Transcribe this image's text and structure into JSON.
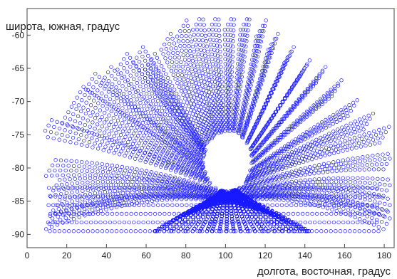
{
  "chart_data": {
    "type": "scatter",
    "title": "",
    "xlabel": "долгота, восточная, градус",
    "ylabel": "широта, южная, градус",
    "xlim": [
      0,
      185
    ],
    "ylim": [
      -92,
      -56
    ],
    "x_ticks": [
      0,
      20,
      40,
      60,
      80,
      100,
      120,
      140,
      160,
      180
    ],
    "y_ticks": [
      -60,
      -65,
      -70,
      -75,
      -80,
      -85,
      -90
    ],
    "x_tick_labels": [
      "0",
      "20",
      "40",
      "60",
      "80",
      "100",
      "120",
      "140",
      "160",
      "180"
    ],
    "y_tick_labels": [
      "-60",
      "-65",
      "-70",
      "-75",
      "-80",
      "-85",
      "-90"
    ],
    "grid": false,
    "legend": "none",
    "marker": "open-circle",
    "series_color": "#1a1aff",
    "pattern": {
      "description_in_data_units": "orbital ground tracks converging around a central hole",
      "hole_center": [
        101,
        -79
      ],
      "hole_radius_x": 12,
      "hole_radius_y": 4.5,
      "tracks": [
        {
          "start": [
            10,
            -74
          ],
          "peak_lat": -76
        },
        {
          "start": [
            12,
            -80
          ],
          "peak_lat": -81
        },
        {
          "start": [
            14,
            -83
          ],
          "peak_lat": -84
        },
        {
          "start": [
            14,
            -86
          ],
          "peak_lat": -86.5
        },
        {
          "start": [
            12,
            -88
          ],
          "peak_lat": -88
        },
        {
          "start": [
            20,
            -72
          ],
          "peak_lat": -72
        },
        {
          "start": [
            26,
            -69
          ],
          "peak_lat": -69
        },
        {
          "start": [
            32,
            -67
          ],
          "peak_lat": -67
        },
        {
          "start": [
            40,
            -66
          ],
          "peak_lat": -66
        },
        {
          "start": [
            48,
            -64
          ],
          "peak_lat": -64
        },
        {
          "start": [
            56,
            -63
          ],
          "peak_lat": -63
        },
        {
          "start": [
            62,
            -64
          ],
          "peak_lat": -64
        },
        {
          "start": [
            70,
            -61
          ],
          "peak_lat": -61
        },
        {
          "start": [
            78,
            -59
          ],
          "peak_lat": -59
        },
        {
          "start": [
            86,
            -58
          ],
          "peak_lat": -58
        },
        {
          "start": [
            94,
            -58
          ],
          "peak_lat": -58
        },
        {
          "start": [
            102,
            -58
          ],
          "peak_lat": -58
        },
        {
          "start": [
            110,
            -58
          ],
          "peak_lat": -58
        },
        {
          "start": [
            118,
            -59
          ],
          "peak_lat": -59
        },
        {
          "start": [
            124,
            -61
          ],
          "peak_lat": -61
        },
        {
          "start": [
            132,
            -63
          ],
          "peak_lat": -63
        },
        {
          "start": [
            140,
            -65
          ],
          "peak_lat": -65
        },
        {
          "start": [
            148,
            -66
          ],
          "peak_lat": -66
        },
        {
          "start": [
            156,
            -68
          ],
          "peak_lat": -68
        },
        {
          "start": [
            164,
            -71
          ],
          "peak_lat": -71
        },
        {
          "start": [
            172,
            -73
          ],
          "peak_lat": -73
        },
        {
          "start": [
            180,
            -75
          ],
          "peak_lat": -75
        },
        {
          "start": [
            182,
            -79
          ],
          "peak_lat": -79
        },
        {
          "start": [
            182,
            -83
          ],
          "peak_lat": -83
        },
        {
          "start": [
            182,
            -86
          ],
          "peak_lat": -86
        },
        {
          "start": [
            182,
            -88
          ],
          "peak_lat": -88
        }
      ],
      "bottom_band_lat": [
        -87,
        -89.5
      ],
      "bottom_band_x": [
        12,
        180
      ]
    }
  }
}
